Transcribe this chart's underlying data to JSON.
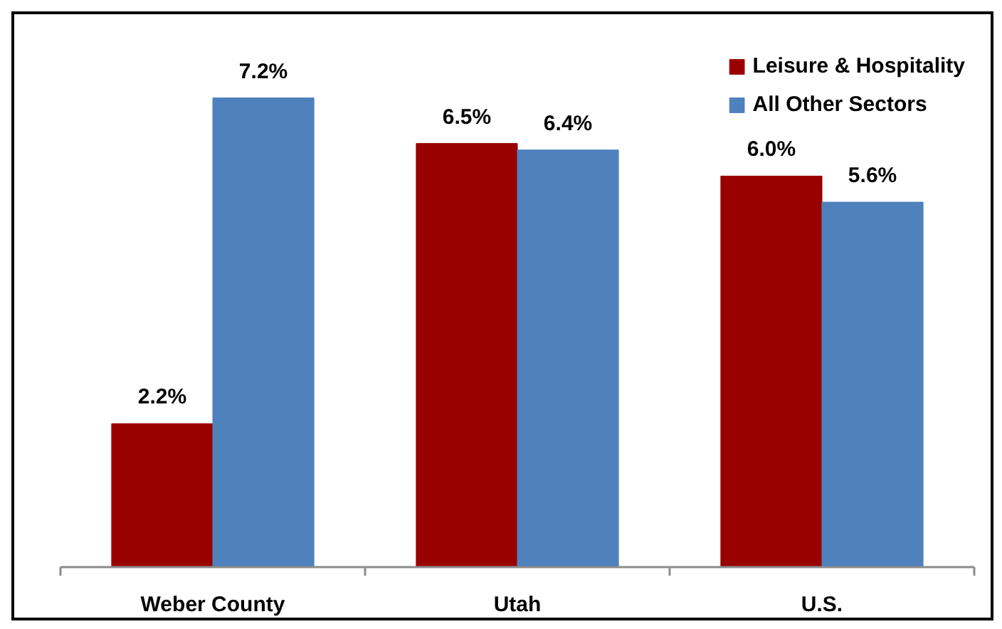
{
  "chart_data": {
    "type": "bar",
    "categories": [
      "Weber County",
      "Utah",
      "U.S."
    ],
    "series": [
      {
        "name": "Leisure & Hospitality",
        "color": "#990000",
        "values": [
          2.2,
          6.5,
          6.0
        ],
        "value_labels": [
          "2.2%",
          "6.5%",
          "6.0%"
        ]
      },
      {
        "name": "All Other Sectors",
        "color": "#4f81bd",
        "values": [
          7.2,
          6.4,
          5.6
        ],
        "value_labels": [
          "7.2%",
          "6.4%",
          "5.6%"
        ]
      }
    ],
    "tick_labels": "x",
    "grid": false,
    "legend": "top right"
  }
}
